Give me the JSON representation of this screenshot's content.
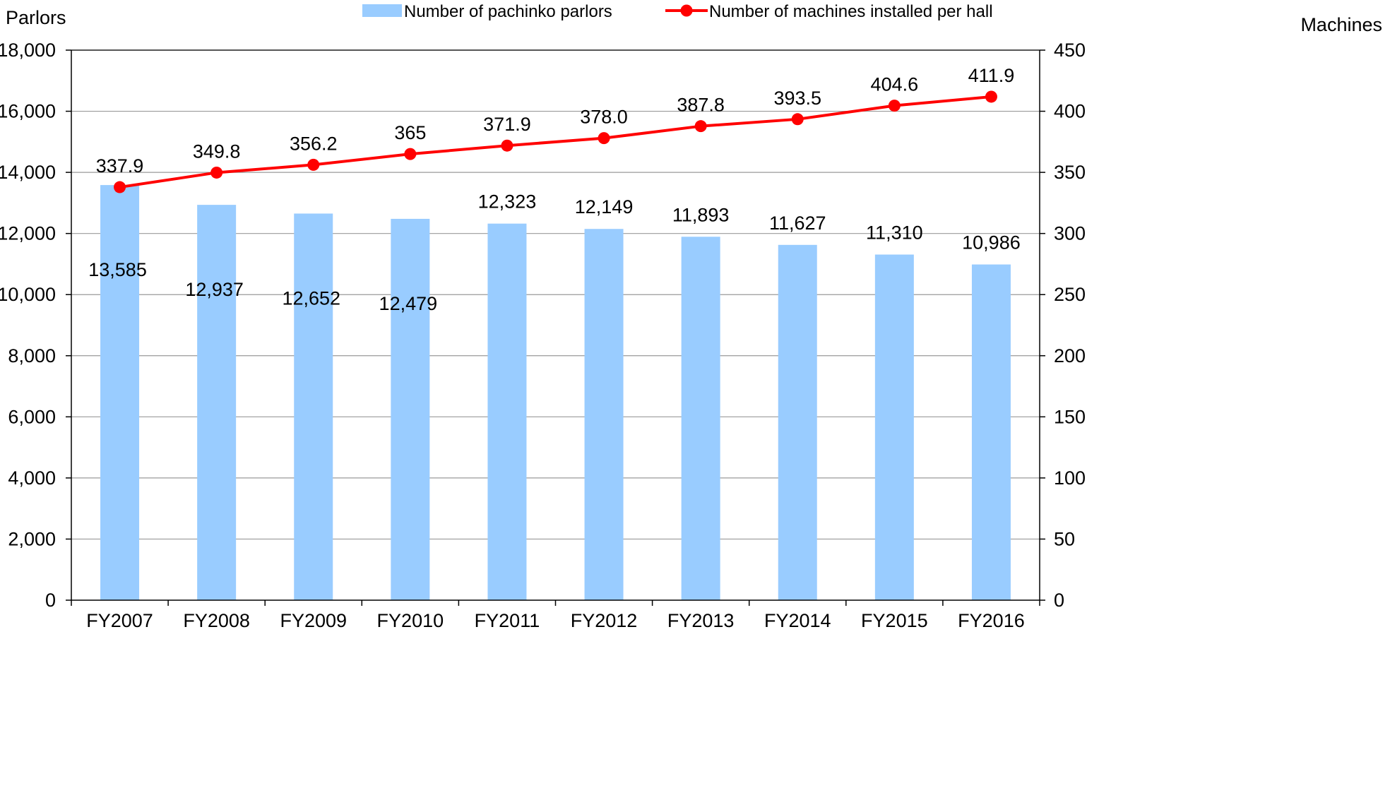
{
  "chart_data": {
    "type": "bar",
    "categories": [
      "FY2007",
      "FY2008",
      "FY2009",
      "FY2010",
      "FY2011",
      "FY2012",
      "FY2013",
      "FY2014",
      "FY2015",
      "FY2016"
    ],
    "left_axis_unit": "Parlors",
    "right_axis_unit": "Machines",
    "left_ylim": [
      0,
      18000
    ],
    "right_ylim": [
      0,
      450
    ],
    "left_ticks": [
      0,
      2000,
      4000,
      6000,
      8000,
      10000,
      12000,
      14000,
      16000,
      18000
    ],
    "left_tick_labels": [
      "0",
      "2,000",
      "4,000",
      "6,000",
      "8,000",
      "10,000",
      "12,000",
      "14,000",
      "16,000",
      "18,000"
    ],
    "right_ticks": [
      0,
      50,
      100,
      150,
      200,
      250,
      300,
      350,
      400,
      450
    ],
    "right_tick_labels": [
      "0",
      "50",
      "100",
      "150",
      "200",
      "250",
      "300",
      "350",
      "400",
      "450"
    ],
    "grid": true,
    "legend_position": "top",
    "series": [
      {
        "name": "Number of pachinko parlors",
        "type": "bar",
        "axis": "left",
        "color": "#99ccff",
        "values": [
          13585,
          12937,
          12652,
          12479,
          12323,
          12149,
          11893,
          11627,
          11310,
          10986
        ],
        "labels": [
          "13,585",
          "12,937",
          "12,652",
          "12,479",
          "12,323",
          "12,149",
          "11,893",
          "11,627",
          "11,310",
          "10,986"
        ]
      },
      {
        "name": "Number of machines installed per hall",
        "type": "line",
        "axis": "right",
        "color": "#ff0000",
        "values": [
          337.9,
          349.8,
          356.2,
          365,
          371.9,
          378.0,
          387.8,
          393.5,
          404.6,
          411.9
        ],
        "labels": [
          "337.9",
          "349.8",
          "356.2",
          "365",
          "371.9",
          "378.0",
          "387.8",
          "393.5",
          "404.6",
          "411.9"
        ]
      }
    ]
  }
}
